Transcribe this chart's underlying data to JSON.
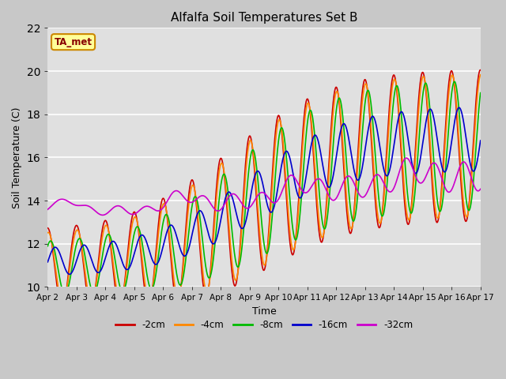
{
  "title": "Alfalfa Soil Temperatures Set B",
  "xlabel": "Time",
  "ylabel": "Soil Temperature (C)",
  "ylim": [
    10,
    22
  ],
  "xlim": [
    0,
    15
  ],
  "fig_bg": "#c8c8c8",
  "plot_bg": "#e0e0e0",
  "annotation_text": "TA_met",
  "annotation_bg": "#ffff99",
  "annotation_border": "#cc8800",
  "tick_labels": [
    "Apr 2",
    "Apr 3",
    "Apr 4",
    "Apr 5",
    "Apr 6",
    "Apr 7",
    "Apr 8",
    "Apr 9",
    "Apr 10",
    "Apr 11",
    "Apr 12",
    "Apr 13",
    "Apr 14",
    "Apr 15",
    "Apr 16",
    "Apr 17"
  ],
  "series": {
    "-2cm": {
      "color": "#cc0000",
      "lw": 1.2
    },
    "-4cm": {
      "color": "#ff8800",
      "lw": 1.2
    },
    "-8cm": {
      "color": "#00bb00",
      "lw": 1.2
    },
    "-16cm": {
      "color": "#0000cc",
      "lw": 1.2
    },
    "-32cm": {
      "color": "#cc00cc",
      "lw": 1.2
    }
  },
  "legend_order": [
    "-2cm",
    "-4cm",
    "-8cm",
    "-16cm",
    "-32cm"
  ]
}
